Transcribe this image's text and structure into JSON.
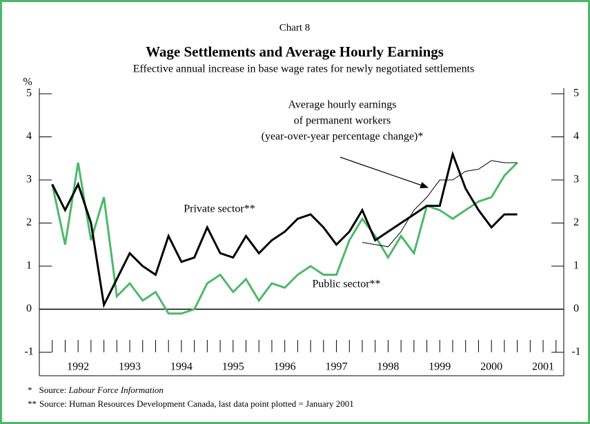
{
  "chart_data": {
    "type": "line",
    "chart_label": "Chart 8",
    "title": "Wage Settlements and Average Hourly Earnings",
    "subtitle": "Effective annual increase in base wage rates for newly negotiated settlements",
    "y_label": "%",
    "x": [
      1992,
      1992.25,
      1992.5,
      1992.75,
      1993,
      1993.25,
      1993.5,
      1993.75,
      1994,
      1994.25,
      1994.5,
      1994.75,
      1995,
      1995.25,
      1995.5,
      1995.75,
      1996,
      1996.25,
      1996.5,
      1996.75,
      1997,
      1997.25,
      1997.5,
      1997.75,
      1998,
      1998.25,
      1998.5,
      1998.75,
      1999,
      1999.25,
      1999.5,
      1999.75,
      2000,
      2000.25,
      2000.5,
      2000.75,
      2001
    ],
    "series": [
      {
        "name": "Private sector**",
        "color": "#000000",
        "width": 3,
        "values": [
          2.9,
          2.3,
          2.9,
          2.0,
          0.1,
          0.7,
          1.3,
          1.0,
          0.8,
          1.7,
          1.1,
          1.2,
          1.9,
          1.3,
          1.2,
          1.7,
          1.3,
          1.6,
          1.8,
          2.1,
          2.2,
          1.9,
          1.5,
          1.8,
          2.3,
          1.6,
          1.8,
          2.0,
          2.2,
          2.4,
          2.4,
          3.6,
          2.8,
          2.3,
          1.9,
          2.2,
          2.2
        ]
      },
      {
        "name": "Public sector**",
        "color": "#4cb86a",
        "width": 3,
        "values": [
          2.9,
          1.5,
          3.4,
          1.6,
          2.6,
          0.3,
          0.6,
          0.2,
          0.4,
          -0.1,
          -0.1,
          0.0,
          0.6,
          0.8,
          0.4,
          0.7,
          0.2,
          0.6,
          0.5,
          0.8,
          1.0,
          0.8,
          0.8,
          1.6,
          2.1,
          1.7,
          1.2,
          1.7,
          1.3,
          2.4,
          2.3,
          2.1,
          2.3,
          2.5,
          2.6,
          3.1,
          3.4
        ]
      },
      {
        "name": "Average hourly earnings of permanent workers (year-over-year percentage change)*",
        "color": "#000000",
        "width": 1,
        "values": [
          null,
          null,
          null,
          null,
          null,
          null,
          null,
          null,
          null,
          null,
          null,
          null,
          null,
          null,
          null,
          null,
          null,
          null,
          null,
          null,
          null,
          null,
          null,
          null,
          1.55,
          1.5,
          1.45,
          1.8,
          2.3,
          2.6,
          3.0,
          3.0,
          3.2,
          3.25,
          3.45,
          3.4,
          3.4
        ]
      }
    ],
    "annotations": [
      "Private sector**",
      "Public sector**",
      "Average hourly earnings",
      "of permanent workers",
      "(year-over-year percentage change)*"
    ],
    "xlim": [
      1991.75,
      2001.9
    ],
    "xticks": [
      {
        "value": 1992.5,
        "label": "1992"
      },
      {
        "value": 1993.5,
        "label": "1993"
      },
      {
        "value": 1994.5,
        "label": "1994"
      },
      {
        "value": 1995.5,
        "label": "1995"
      },
      {
        "value": 1996.5,
        "label": "1996"
      },
      {
        "value": 1997.5,
        "label": "1997"
      },
      {
        "value": 1998.5,
        "label": "1998"
      },
      {
        "value": 1999.5,
        "label": "1999"
      },
      {
        "value": 2000.5,
        "label": "2000"
      },
      {
        "value": 2001.5,
        "label": "2001"
      }
    ],
    "xticks_minor": [
      1992,
      1992.25,
      1992.5,
      1992.75,
      1993,
      1993.25,
      1993.5,
      1993.75,
      1994,
      1994.25,
      1994.5,
      1994.75,
      1995,
      1995.25,
      1995.5,
      1995.75,
      1996,
      1996.25,
      1996.5,
      1996.75,
      1997,
      1997.25,
      1997.5,
      1997.75,
      1998,
      1998.25,
      1998.5,
      1998.75,
      1999,
      1999.25,
      1999.5,
      1999.75,
      2000,
      2000.25,
      2000.5,
      2000.75,
      2001,
      2001.25,
      2001.5,
      2001.75
    ],
    "ylim": [
      -1,
      5
    ],
    "yticks": [
      -1,
      0,
      1,
      2,
      3,
      4,
      5
    ],
    "y2lim": [
      -1,
      5
    ],
    "y2ticks": [
      -1,
      0,
      1,
      2,
      3,
      4,
      5
    ],
    "footnotes": [
      {
        "marker": "*",
        "text": "Source: ",
        "source": "Labour Force Information"
      },
      {
        "marker": "**",
        "text": "Source: Human Resources Development Canada, last data point plotted = January 2001"
      }
    ]
  }
}
